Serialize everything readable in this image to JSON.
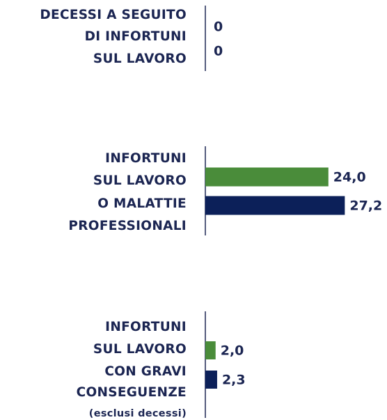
{
  "chart_data": {
    "type": "bar",
    "orientation": "horizontal",
    "categories": [
      [
        "DECESSI A SEGUITO",
        "DI INFORTUNI",
        "SUL LAVORO"
      ],
      [
        "INFORTUNI",
        "SUL LAVORO",
        "O MALATTIE",
        "PROFESSIONALI"
      ],
      [
        "INFORTUNI",
        "SUL LAVORO",
        "CON GRAVI",
        "CONSEGUENZE",
        "(esclusi decessi)"
      ]
    ],
    "series": [
      {
        "color": "#4a8c3a",
        "values": [
          0,
          24.0,
          2.0
        ],
        "value_labels": [
          "0",
          "24,0",
          "2,0"
        ]
      },
      {
        "color": "#0c2059",
        "values": [
          0,
          27.2,
          2.3
        ],
        "value_labels": [
          "0",
          "27,2",
          "2,3"
        ]
      }
    ],
    "xlim": [
      0,
      30
    ]
  }
}
